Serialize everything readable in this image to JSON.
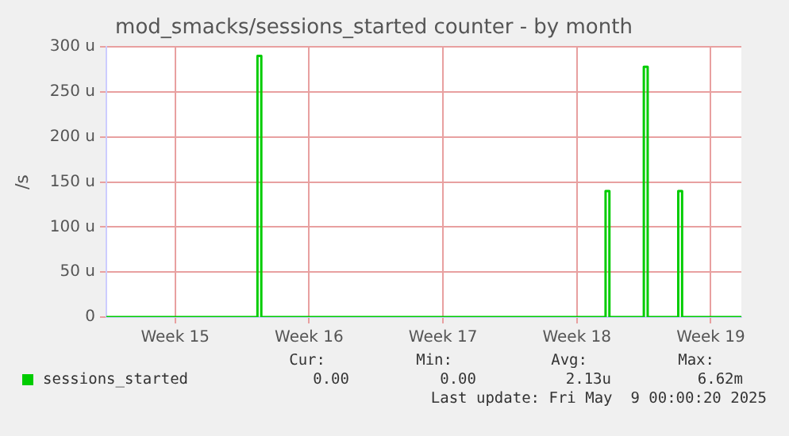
{
  "chart_data": {
    "type": "step",
    "title": "mod_smacks/sessions_started counter - by month",
    "ylabel": "/s",
    "categories": [
      null,
      null,
      null,
      null,
      null,
      null,
      null,
      null,
      null,
      null,
      null,
      null,
      null,
      null,
      null,
      null,
      null,
      null,
      "Week 15",
      null,
      null,
      null,
      null,
      null,
      null,
      null,
      null,
      null,
      null,
      null,
      null,
      null,
      null,
      null,
      null,
      null,
      null,
      null,
      null,
      null,
      null,
      null,
      null,
      null,
      null,
      null,
      null,
      null,
      null,
      null,
      null,
      null,
      null,
      "Week 16",
      null,
      null,
      null,
      null,
      null,
      null,
      null,
      null,
      null,
      null,
      null,
      null,
      null,
      null,
      null,
      null,
      null,
      null,
      null,
      null,
      null,
      null,
      null,
      null,
      null,
      null,
      null,
      null,
      null,
      null,
      null,
      null,
      null,
      null,
      "Week 17",
      null,
      null,
      null,
      null,
      null,
      null,
      null,
      null,
      null,
      null,
      null,
      null,
      null,
      null,
      null,
      null,
      null,
      null,
      null,
      null,
      null,
      null,
      null,
      null,
      null,
      null,
      null,
      null,
      null,
      null,
      null,
      null,
      null,
      null,
      "Week 18",
      null,
      null,
      null,
      null,
      null,
      null,
      null,
      null,
      null,
      null,
      null,
      null,
      null,
      null,
      null,
      null,
      null,
      null,
      null,
      null,
      null,
      null,
      null,
      null,
      null,
      null,
      null,
      null,
      null,
      null,
      null,
      null,
      null,
      null,
      "Week 19",
      null,
      null,
      null,
      null,
      null,
      null,
      null,
      null
    ],
    "ylim": [
      0,
      300
    ],
    "yticks": [
      {
        "value": 0,
        "label": "0"
      },
      {
        "value": 50,
        "label": "50 u"
      },
      {
        "value": 100,
        "label": "100 u"
      },
      {
        "value": 150,
        "label": "150 u"
      },
      {
        "value": 200,
        "label": "200 u"
      },
      {
        "value": 250,
        "label": "250 u"
      },
      {
        "value": 300,
        "label": "300 u"
      }
    ],
    "grid": true,
    "legend": "bottom",
    "marker": "none",
    "line_style": "solid",
    "series": [
      {
        "name": "sessions_started",
        "color": "#00cc00",
        "values": [
          0,
          0,
          0,
          0,
          0,
          0,
          0,
          0,
          0,
          0,
          0,
          0,
          0,
          0,
          0,
          0,
          0,
          0,
          0,
          0,
          0,
          0,
          0,
          0,
          0,
          0,
          0,
          0,
          0,
          0,
          0,
          0,
          0,
          0,
          0,
          0,
          0,
          0,
          0,
          0,
          290,
          0,
          0,
          0,
          0,
          0,
          0,
          0,
          0,
          0,
          0,
          0,
          0,
          0,
          0,
          0,
          0,
          0,
          0,
          0,
          0,
          0,
          0,
          0,
          0,
          0,
          0,
          0,
          0,
          0,
          0,
          0,
          0,
          0,
          0,
          0,
          0,
          0,
          0,
          0,
          0,
          0,
          0,
          0,
          0,
          0,
          0,
          0,
          0,
          0,
          0,
          0,
          0,
          0,
          0,
          0,
          0,
          0,
          0,
          0,
          0,
          0,
          0,
          0,
          0,
          0,
          0,
          0,
          0,
          0,
          0,
          0,
          0,
          0,
          0,
          0,
          0,
          0,
          0,
          0,
          0,
          0,
          0,
          0,
          0,
          0,
          0,
          0,
          0,
          0,
          0,
          140,
          0,
          0,
          0,
          0,
          0,
          0,
          0,
          0,
          0,
          278,
          0,
          0,
          0,
          0,
          0,
          0,
          0,
          0,
          140,
          0,
          0,
          0,
          0,
          0,
          0,
          0,
          0,
          0,
          0,
          0,
          0,
          0,
          0,
          0,
          0
        ]
      }
    ],
    "annotations": [
      "Cur:",
      "0.00",
      "Min:",
      "0.00",
      "Avg:",
      "2.13u",
      "Max:",
      "6.62m",
      "Last update: Fri May  9 00:00:20 2025"
    ]
  }
}
